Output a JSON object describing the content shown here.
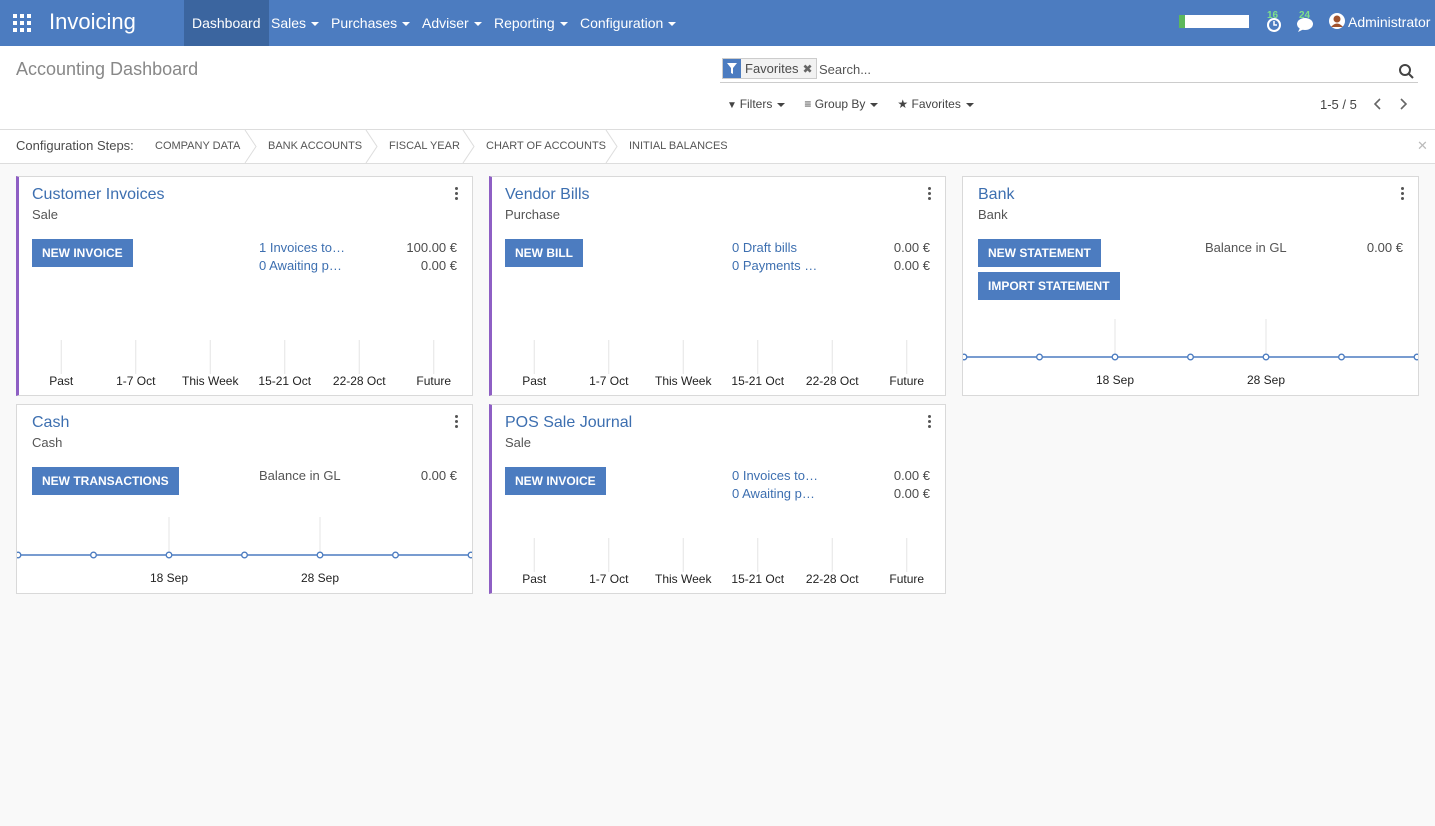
{
  "navbar": {
    "app": "Invoicing",
    "menus": [
      "Dashboard",
      "Sales",
      "Purchases",
      "Adviser",
      "Reporting",
      "Configuration"
    ],
    "badges": [
      "16",
      "24"
    ],
    "user": "Administrator"
  },
  "control_panel": {
    "title": "Accounting Dashboard",
    "facet": "Favorites",
    "search_placeholder": "Search...",
    "filters": [
      "Filters",
      "Group By",
      "Favorites"
    ],
    "pager": "1-5 / 5"
  },
  "config_steps": {
    "label": "Configuration Steps:",
    "steps": [
      "COMPANY DATA",
      "BANK ACCOUNTS",
      "FISCAL YEAR",
      "CHART OF ACCOUNTS",
      "INITIAL BALANCES"
    ]
  },
  "cards": [
    {
      "title": "Customer Invoices",
      "subtitle": "Sale",
      "buttons": [
        "NEW INVOICE"
      ],
      "stats": [
        {
          "label": "1 Invoices to…",
          "value": "100.00 €"
        },
        {
          "label": "0 Awaiting p…",
          "value": "0.00 €"
        }
      ],
      "chart": {
        "type": "bar",
        "categories": [
          "Past",
          "1-7 Oct",
          "This Week",
          "15-21 Oct",
          "22-28 Oct",
          "Future"
        ],
        "values": [
          0,
          0,
          0,
          0,
          0,
          0
        ]
      }
    },
    {
      "title": "Vendor Bills",
      "subtitle": "Purchase",
      "buttons": [
        "NEW BILL"
      ],
      "stats": [
        {
          "label": "0 Draft bills",
          "value": "0.00 €"
        },
        {
          "label": "0 Payments …",
          "value": "0.00 €"
        }
      ],
      "chart": {
        "type": "bar",
        "categories": [
          "Past",
          "1-7 Oct",
          "This Week",
          "15-21 Oct",
          "22-28 Oct",
          "Future"
        ],
        "values": [
          0,
          0,
          0,
          0,
          0,
          0
        ]
      }
    },
    {
      "title": "Bank",
      "subtitle": "Bank",
      "buttons": [
        "NEW STATEMENT",
        "IMPORT STATEMENT"
      ],
      "stats": [
        {
          "label": "Balance in GL",
          "value": "0.00 €"
        }
      ],
      "chart": {
        "type": "line",
        "categories": [
          null,
          null,
          "18 Sep",
          null,
          "28 Sep",
          null,
          null
        ],
        "values": [
          0,
          0,
          0,
          0,
          0,
          0,
          0
        ]
      }
    },
    {
      "title": "Cash",
      "subtitle": "Cash",
      "buttons": [
        "NEW TRANSACTIONS"
      ],
      "stats": [
        {
          "label": "Balance in GL",
          "value": "0.00 €"
        }
      ],
      "chart": {
        "type": "line",
        "categories": [
          null,
          null,
          "18 Sep",
          null,
          "28 Sep",
          null,
          null
        ],
        "values": [
          0,
          0,
          0,
          0,
          0,
          0,
          0
        ]
      }
    },
    {
      "title": "POS Sale Journal",
      "subtitle": "Sale",
      "buttons": [
        "NEW INVOICE"
      ],
      "stats": [
        {
          "label": "0 Invoices to…",
          "value": "0.00 €"
        },
        {
          "label": "0 Awaiting p…",
          "value": "0.00 €"
        }
      ],
      "chart": {
        "type": "bar",
        "categories": [
          "Past",
          "1-7 Oct",
          "This Week",
          "15-21 Oct",
          "22-28 Oct",
          "Future"
        ],
        "values": [
          0,
          0,
          0,
          0,
          0,
          0
        ]
      }
    }
  ]
}
